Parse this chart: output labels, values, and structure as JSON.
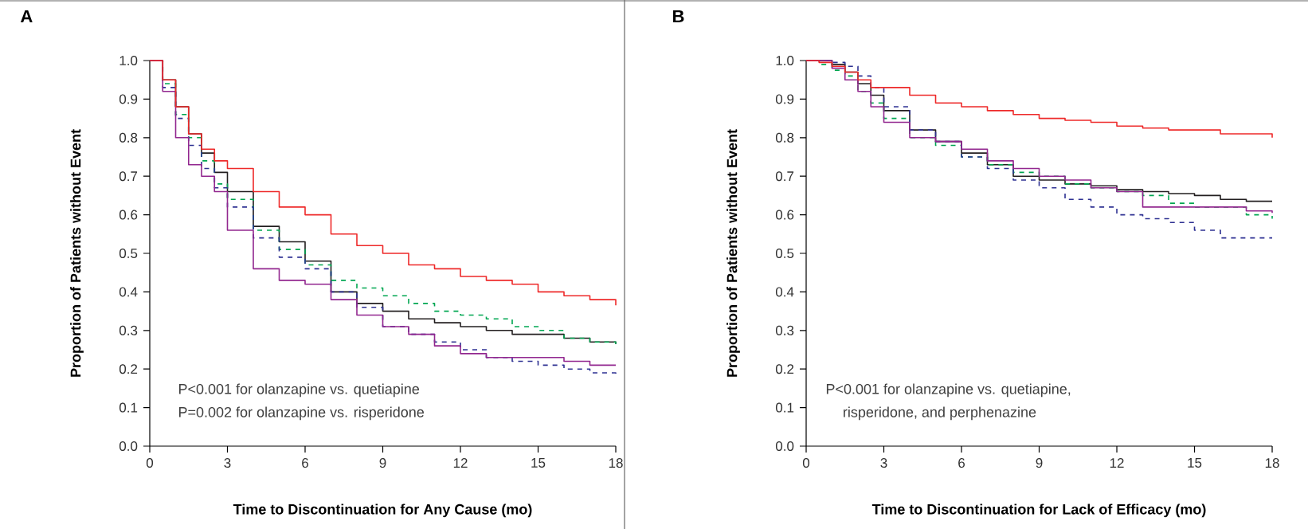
{
  "chart_data": [
    {
      "type": "step",
      "title": "A",
      "xlabel": "Time to Discontinuation for Any Cause (mo)",
      "ylabel": "Proportion of Patients without Event",
      "annotations": [
        "P<0.001 for olanzapine vs. quetiapine",
        "P=0.002 for olanzapine vs. risperidone"
      ],
      "x": [
        0,
        0.5,
        1,
        1.5,
        2,
        2.5,
        3,
        4,
        5,
        6,
        7,
        8,
        9,
        10,
        11,
        12,
        13,
        14,
        15,
        16,
        17,
        18
      ],
      "series": [
        {
          "color": "#ee2a2a",
          "line_style": "solid",
          "values": [
            1.0,
            0.95,
            0.88,
            0.81,
            0.77,
            0.74,
            0.72,
            0.66,
            0.62,
            0.6,
            0.55,
            0.52,
            0.5,
            0.47,
            0.46,
            0.44,
            0.43,
            0.42,
            0.4,
            0.39,
            0.38,
            0.365
          ]
        },
        {
          "color": "#231f20",
          "line_style": "solid",
          "values": [
            1.0,
            0.95,
            0.88,
            0.81,
            0.76,
            0.71,
            0.66,
            0.57,
            0.53,
            0.48,
            0.4,
            0.37,
            0.35,
            0.33,
            0.32,
            0.31,
            0.3,
            0.29,
            0.29,
            0.28,
            0.27,
            0.265
          ]
        },
        {
          "color": "#00a651",
          "line_style": "dashed",
          "values": [
            1.0,
            0.94,
            0.86,
            0.8,
            0.74,
            0.68,
            0.64,
            0.56,
            0.51,
            0.47,
            0.43,
            0.41,
            0.39,
            0.37,
            0.35,
            0.34,
            0.33,
            0.31,
            0.3,
            0.28,
            0.27,
            0.265
          ]
        },
        {
          "color": "#2e3192",
          "line_style": "dashed",
          "values": [
            1.0,
            0.93,
            0.85,
            0.78,
            0.72,
            0.67,
            0.62,
            0.54,
            0.49,
            0.46,
            0.4,
            0.36,
            0.31,
            0.29,
            0.27,
            0.25,
            0.23,
            0.22,
            0.21,
            0.2,
            0.19,
            0.185
          ]
        },
        {
          "color": "#92278f",
          "line_style": "solid",
          "values": [
            1.0,
            0.92,
            0.8,
            0.73,
            0.7,
            0.66,
            0.56,
            0.46,
            0.43,
            0.42,
            0.38,
            0.34,
            0.31,
            0.29,
            0.26,
            0.24,
            0.23,
            0.23,
            0.23,
            0.22,
            0.21,
            0.21
          ]
        }
      ],
      "xlim": [
        0,
        18
      ],
      "xticks": [
        0,
        3,
        6,
        9,
        12,
        15,
        18
      ],
      "ylim": [
        0,
        1
      ],
      "yticks": [
        {
          "value": 0,
          "label": "0.0"
        },
        {
          "value": 0.1,
          "label": "0.1"
        },
        {
          "value": 0.2,
          "label": "0.2"
        },
        {
          "value": 0.3,
          "label": "0.3"
        },
        {
          "value": 0.4,
          "label": "0.4"
        },
        {
          "value": 0.5,
          "label": "0.5"
        },
        {
          "value": 0.6,
          "label": "0.6"
        },
        {
          "value": 0.7,
          "label": "0.7"
        },
        {
          "value": 0.8,
          "label": "0.8"
        },
        {
          "value": 0.9,
          "label": "0.9"
        },
        {
          "value": 1,
          "label": "1.0"
        }
      ]
    },
    {
      "type": "step",
      "title": "B",
      "xlabel": "Time to Discontinuation for Lack of Efficacy (mo)",
      "ylabel": "Proportion of Patients without Event",
      "annotations": [
        "P<0.001 for olanzapine vs. quetiapine,",
        "risperidone, and perphenazine"
      ],
      "x": [
        0,
        0.5,
        1,
        1.5,
        2,
        2.5,
        3,
        4,
        5,
        6,
        7,
        8,
        9,
        10,
        11,
        12,
        13,
        14,
        15,
        16,
        17,
        18
      ],
      "series": [
        {
          "color": "#ee2a2a",
          "line_style": "solid",
          "values": [
            1.0,
            0.995,
            0.985,
            0.97,
            0.95,
            0.93,
            0.93,
            0.91,
            0.89,
            0.88,
            0.87,
            0.86,
            0.85,
            0.845,
            0.84,
            0.83,
            0.825,
            0.82,
            0.82,
            0.81,
            0.81,
            0.8
          ]
        },
        {
          "color": "#231f20",
          "line_style": "solid",
          "values": [
            1.0,
            1.0,
            0.99,
            0.97,
            0.94,
            0.91,
            0.87,
            0.82,
            0.79,
            0.76,
            0.73,
            0.7,
            0.69,
            0.68,
            0.675,
            0.665,
            0.66,
            0.655,
            0.65,
            0.64,
            0.635,
            0.635
          ]
        },
        {
          "color": "#00a651",
          "line_style": "dashed",
          "values": [
            1.0,
            0.99,
            0.975,
            0.96,
            0.92,
            0.89,
            0.85,
            0.8,
            0.78,
            0.75,
            0.73,
            0.71,
            0.7,
            0.68,
            0.67,
            0.66,
            0.65,
            0.63,
            0.62,
            0.62,
            0.6,
            0.59
          ]
        },
        {
          "color": "#2e3192",
          "line_style": "dashed",
          "values": [
            1.0,
            1.0,
            0.995,
            0.985,
            0.96,
            0.93,
            0.88,
            0.82,
            0.79,
            0.75,
            0.72,
            0.69,
            0.67,
            0.64,
            0.62,
            0.6,
            0.59,
            0.58,
            0.56,
            0.54,
            0.54,
            0.54
          ]
        },
        {
          "color": "#92278f",
          "line_style": "solid",
          "values": [
            1.0,
            1.0,
            0.98,
            0.95,
            0.92,
            0.88,
            0.84,
            0.8,
            0.79,
            0.77,
            0.74,
            0.72,
            0.7,
            0.69,
            0.67,
            0.66,
            0.62,
            0.62,
            0.62,
            0.62,
            0.61,
            0.605
          ]
        }
      ],
      "xlim": [
        0,
        18
      ],
      "xticks": [
        0,
        3,
        6,
        9,
        12,
        15,
        18
      ],
      "ylim": [
        0,
        1
      ],
      "yticks": [
        {
          "value": 0,
          "label": "0.0"
        },
        {
          "value": 0.1,
          "label": "0.1"
        },
        {
          "value": 0.2,
          "label": "0.2"
        },
        {
          "value": 0.3,
          "label": "0.3"
        },
        {
          "value": 0.4,
          "label": "0.4"
        },
        {
          "value": 0.5,
          "label": "0.5"
        },
        {
          "value": 0.6,
          "label": "0.6"
        },
        {
          "value": 0.7,
          "label": "0.7"
        },
        {
          "value": 0.8,
          "label": "0.8"
        },
        {
          "value": 0.9,
          "label": "0.9"
        },
        {
          "value": 1,
          "label": "1.0"
        }
      ]
    }
  ]
}
